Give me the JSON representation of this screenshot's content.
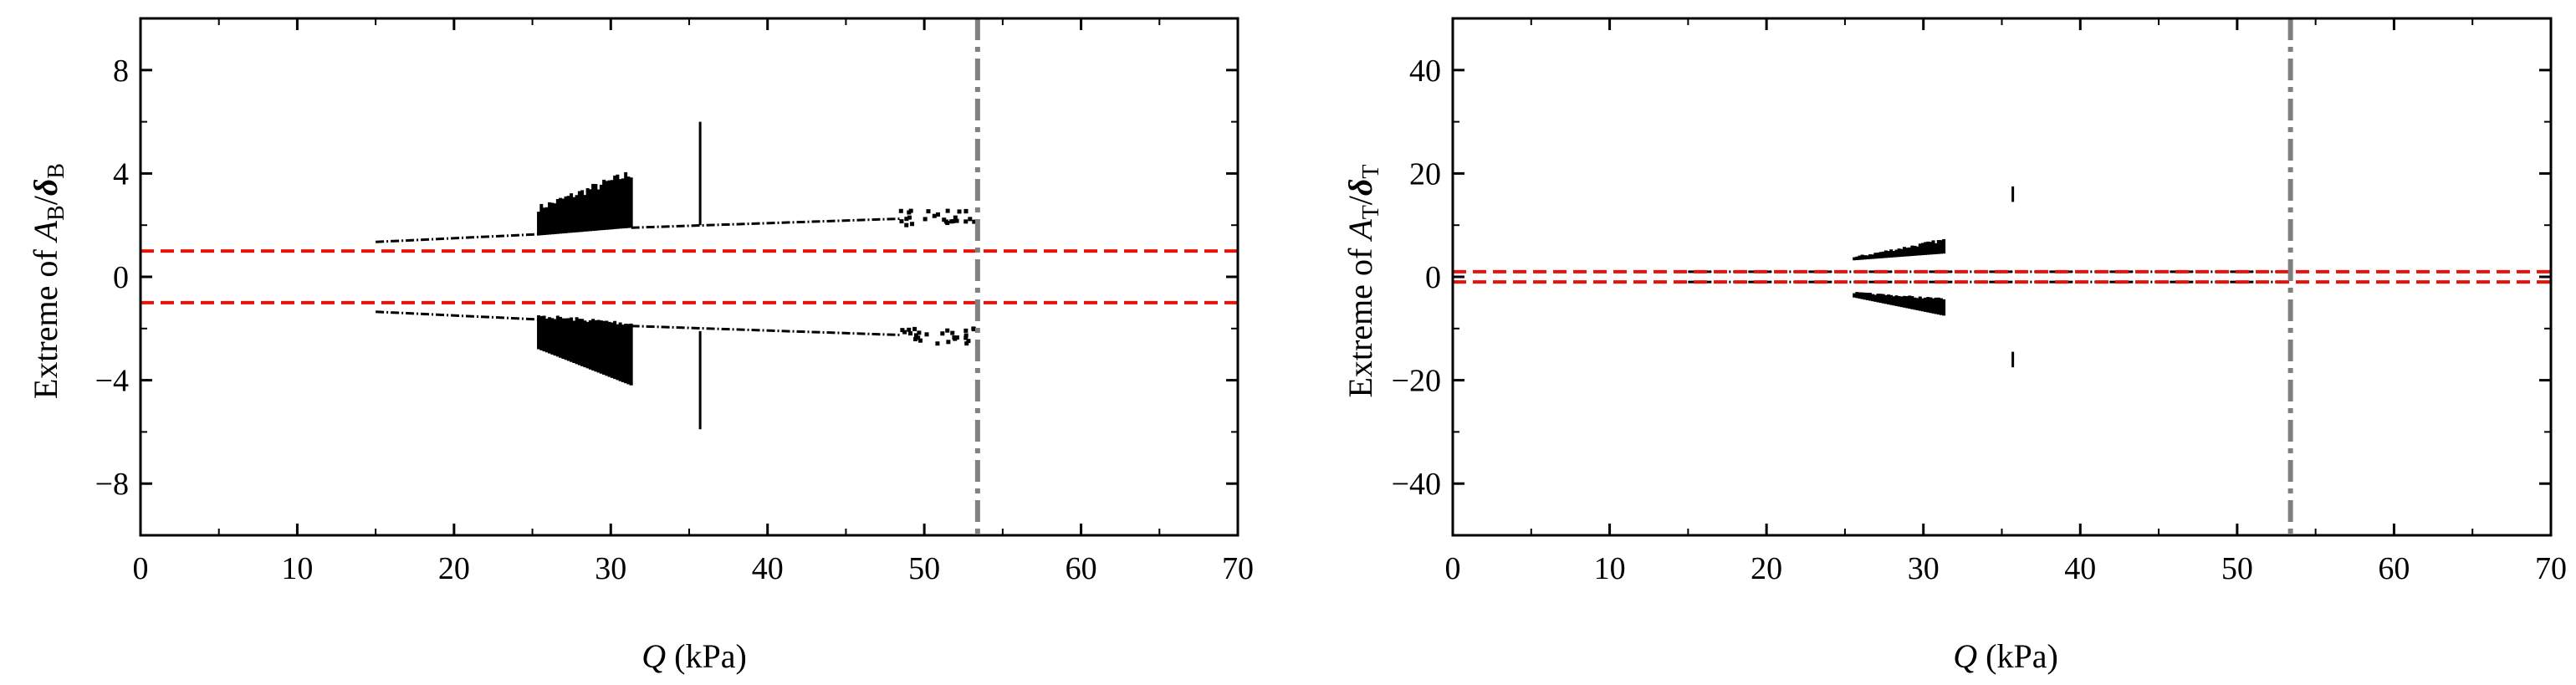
{
  "chart_data": [
    {
      "type": "scatter",
      "xlabel_var": "Q",
      "xlabel_unit": " (kPa)",
      "ylabel_prefix": "Extreme of ",
      "ylabel_num": "A",
      "ylabel_num_sub": "B",
      "ylabel_slash": "/",
      "ylabel_den": "δ",
      "ylabel_den_sub": "B",
      "xlim": [
        0,
        70
      ],
      "ylim": [
        -10,
        10
      ],
      "xticks": [
        0,
        10,
        20,
        30,
        40,
        50,
        60,
        70
      ],
      "xtick_labels": [
        "0",
        "10",
        "20",
        "30",
        "40",
        "50",
        "60",
        "70"
      ],
      "yticks": [
        -8,
        -4,
        0,
        4,
        8
      ],
      "ytick_labels": [
        "−8",
        "−4",
        "0",
        "4",
        "8"
      ],
      "threshold_lines": {
        "values": [
          1,
          -1
        ],
        "color": "#e8120c",
        "style": "dashed"
      },
      "boundary_line": {
        "x": 53.4,
        "color": "#808080",
        "style": "dash-dot"
      },
      "series": [
        {
          "kind": "trend",
          "segments": [
            [
              15,
              1.35,
              25.4,
              1.65
            ],
            [
              31.3,
              1.9,
              48.5,
              2.25
            ]
          ]
        },
        {
          "kind": "trend",
          "segments": [
            [
              15,
              -1.35,
              25.4,
              -1.65
            ],
            [
              31.3,
              -1.9,
              48.5,
              -2.25
            ]
          ]
        },
        {
          "kind": "band",
          "x_range": [
            25.4,
            31.3
          ],
          "upper": [
            [
              25.4,
              2.8
            ],
            [
              31.3,
              4.2
            ]
          ],
          "lower_edge": [
            [
              25.4,
              1.6
            ],
            [
              31.3,
              1.9
            ]
          ]
        },
        {
          "kind": "band",
          "x_range": [
            25.4,
            31.3
          ],
          "upper": [
            [
              25.4,
              -1.6
            ],
            [
              31.3,
              -1.9
            ]
          ],
          "lower_edge": [
            [
              25.4,
              -2.8
            ],
            [
              31.3,
              -4.2
            ]
          ]
        },
        {
          "kind": "vline",
          "x": 35.7,
          "y_range": [
            2.0,
            6.0
          ]
        },
        {
          "kind": "vline",
          "x": 35.7,
          "y_range": [
            -5.9,
            -2.1
          ]
        },
        {
          "kind": "cluster",
          "x_range": [
            48.5,
            53.2
          ],
          "y_range": [
            2.0,
            2.6
          ]
        },
        {
          "kind": "cluster",
          "x_range": [
            48.5,
            53.2
          ],
          "y_range": [
            -2.6,
            -2.0
          ]
        }
      ]
    },
    {
      "type": "scatter",
      "xlabel_var": "Q",
      "xlabel_unit": " (kPa)",
      "ylabel_prefix": "Extreme of ",
      "ylabel_num": "A",
      "ylabel_num_sub": "T",
      "ylabel_slash": "/",
      "ylabel_den": "δ",
      "ylabel_den_sub": "T",
      "xlim": [
        0,
        70
      ],
      "ylim": [
        -50,
        50
      ],
      "xticks": [
        0,
        10,
        20,
        30,
        40,
        50,
        60,
        70
      ],
      "xtick_labels": [
        "0",
        "10",
        "20",
        "30",
        "40",
        "50",
        "60",
        "70"
      ],
      "yticks": [
        -40,
        -20,
        0,
        20,
        40
      ],
      "ytick_labels": [
        "−40",
        "−20",
        "0",
        "20",
        "40"
      ],
      "threshold_lines": {
        "values": [
          1,
          -1
        ],
        "color": "#e8120c",
        "style": "dashed"
      },
      "boundary_line": {
        "x": 53.4,
        "color": "#808080",
        "style": "dash-dot"
      },
      "series": [
        {
          "kind": "trend",
          "segments": [
            [
              15,
              1.0,
              53.2,
              1.0
            ]
          ]
        },
        {
          "kind": "trend",
          "segments": [
            [
              15,
              -1.0,
              53.2,
              -1.0
            ]
          ]
        },
        {
          "kind": "band",
          "x_range": [
            25.6,
            31.3
          ],
          "upper": [
            [
              25.6,
              4.0
            ],
            [
              31.3,
              7.5
            ]
          ],
          "lower_edge": [
            [
              25.6,
              3.2
            ],
            [
              31.3,
              4.5
            ]
          ]
        },
        {
          "kind": "band",
          "x_range": [
            25.6,
            31.3
          ],
          "upper": [
            [
              25.6,
              -3.2
            ],
            [
              31.3,
              -4.5
            ]
          ],
          "lower_edge": [
            [
              25.6,
              -4.0
            ],
            [
              31.3,
              -7.5
            ]
          ]
        },
        {
          "kind": "vline",
          "x": 35.7,
          "y_range": [
            14.5,
            17.5
          ]
        },
        {
          "kind": "vline",
          "x": 35.7,
          "y_range": [
            -17.5,
            -14.5
          ]
        }
      ]
    }
  ]
}
